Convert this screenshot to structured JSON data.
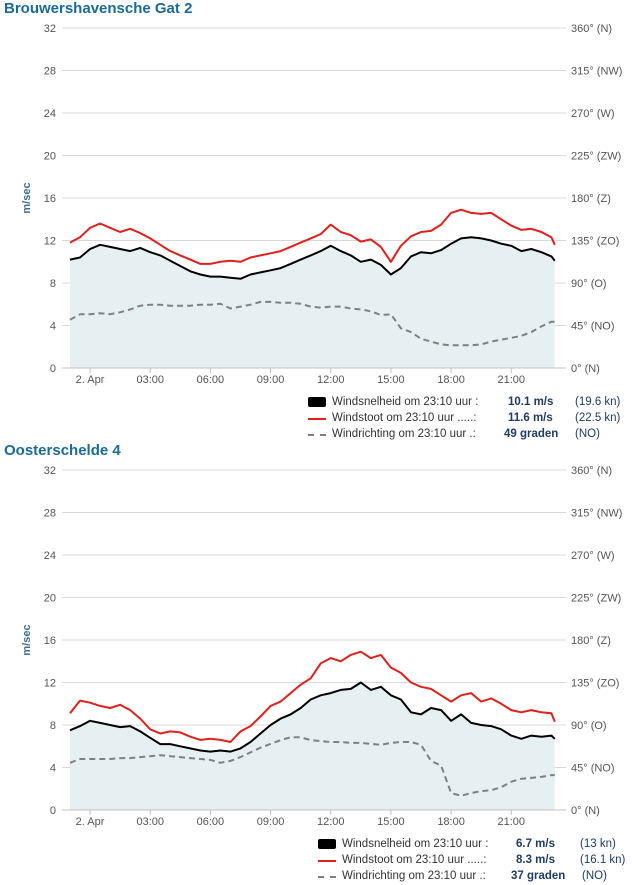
{
  "chart_data": [
    {
      "type": "line",
      "title": "Brouwershavensche Gat 2",
      "ylabel": "m/sec",
      "ylim": [
        0,
        32
      ],
      "yticks": [
        "0",
        "4",
        "8",
        "12",
        "16",
        "20",
        "24",
        "28",
        "32"
      ],
      "y2ticks": [
        "0° (N)",
        "45° (NO)",
        "90° (O)",
        "135° (ZO)",
        "180° (Z)",
        "225° (ZW)",
        "270° (W)",
        "315° (NW)",
        "360° (N)"
      ],
      "xlim": [
        -1.0,
        23.33
      ],
      "xticks": [
        {
          "x": 0,
          "label": "2. Apr"
        },
        {
          "x": 3,
          "label": "03:00"
        },
        {
          "x": 6,
          "label": "06:00"
        },
        {
          "x": 9,
          "label": "09:00"
        },
        {
          "x": 12,
          "label": "12:00"
        },
        {
          "x": 15,
          "label": "15:00"
        },
        {
          "x": 18,
          "label": "18:00"
        },
        {
          "x": 21,
          "label": "21:00"
        }
      ],
      "grid": true,
      "x_hours": [
        -1.0,
        -0.5,
        0,
        0.5,
        1,
        1.5,
        2,
        2.5,
        3,
        3.5,
        4,
        4.5,
        5,
        5.5,
        6,
        6.5,
        7,
        7.5,
        8,
        8.5,
        9,
        9.5,
        10,
        10.5,
        11,
        11.5,
        12,
        12.5,
        13,
        13.5,
        14,
        14.5,
        15,
        15.5,
        16,
        16.5,
        17,
        17.5,
        18,
        18.5,
        19,
        19.5,
        20,
        20.5,
        21,
        21.5,
        22,
        22.5,
        23,
        23.17
      ],
      "series": [
        {
          "name": "Windsnelheid",
          "color": "#000000",
          "style": "area",
          "values": [
            10.2,
            10.4,
            11.2,
            11.6,
            11.4,
            11.2,
            11.0,
            11.3,
            10.9,
            10.6,
            10.1,
            9.6,
            9.1,
            8.8,
            8.6,
            8.6,
            8.5,
            8.4,
            8.8,
            9.0,
            9.2,
            9.4,
            9.8,
            10.2,
            10.6,
            11.0,
            11.5,
            11.0,
            10.6,
            10.0,
            10.2,
            9.7,
            8.8,
            9.4,
            10.5,
            10.9,
            10.8,
            11.1,
            11.7,
            12.2,
            12.3,
            12.2,
            12.0,
            11.7,
            11.5,
            11.0,
            11.2,
            10.9,
            10.5,
            10.1
          ]
        },
        {
          "name": "Windstoot",
          "color": "#e0201b",
          "style": "line",
          "values": [
            11.8,
            12.3,
            13.2,
            13.6,
            13.2,
            12.8,
            13.1,
            12.7,
            12.2,
            11.6,
            11.0,
            10.6,
            10.2,
            9.8,
            9.8,
            10.0,
            10.1,
            10.0,
            10.4,
            10.6,
            10.8,
            11.0,
            11.4,
            11.8,
            12.2,
            12.6,
            13.5,
            12.8,
            12.5,
            11.9,
            12.1,
            11.4,
            10.0,
            11.5,
            12.4,
            12.8,
            12.9,
            13.5,
            14.6,
            14.9,
            14.6,
            14.5,
            14.6,
            14.0,
            13.4,
            13.0,
            13.1,
            12.8,
            12.3,
            11.6
          ]
        },
        {
          "name": "Windrichting",
          "color": "#808080",
          "style": "dash",
          "values": [
            51,
            57,
            57,
            58,
            57,
            59,
            62,
            66,
            67,
            67,
            66,
            66,
            66,
            67,
            67,
            68,
            63,
            65,
            67,
            70,
            70,
            69,
            69,
            68,
            65,
            64,
            65,
            65,
            63,
            62,
            60,
            56,
            57,
            42,
            38,
            31,
            28,
            25,
            24,
            24,
            24,
            25,
            28,
            30,
            32,
            34,
            38,
            44,
            49,
            49
          ]
        }
      ],
      "legend": [
        {
          "label": "Windsnelheid om 23:10 uur :",
          "value": "10.1 m/s",
          "unit": "(19.6 kn)"
        },
        {
          "label": "Windstoot om 23:10 uur .....:",
          "value": "11.6 m/s",
          "unit": "(22.5 kn)"
        },
        {
          "label": "Windrichting om 23:10 uur .:",
          "value": "49 graden",
          "unit": "(NO)"
        }
      ]
    },
    {
      "type": "line",
      "title": "Oosterschelde 4",
      "ylabel": "m/sec",
      "ylim": [
        0,
        32
      ],
      "yticks": [
        "0",
        "4",
        "8",
        "12",
        "16",
        "20",
        "24",
        "28",
        "32"
      ],
      "y2ticks": [
        "0° (N)",
        "45° (NO)",
        "90° (O)",
        "135° (ZO)",
        "180° (Z)",
        "225° (ZW)",
        "270° (W)",
        "315° (NW)",
        "360° (N)"
      ],
      "xlim": [
        -1.0,
        23.33
      ],
      "xticks": [
        {
          "x": 0,
          "label": "2. Apr"
        },
        {
          "x": 3,
          "label": "03:00"
        },
        {
          "x": 6,
          "label": "06:00"
        },
        {
          "x": 9,
          "label": "09:00"
        },
        {
          "x": 12,
          "label": "12:00"
        },
        {
          "x": 15,
          "label": "15:00"
        },
        {
          "x": 18,
          "label": "18:00"
        },
        {
          "x": 21,
          "label": "21:00"
        }
      ],
      "grid": true,
      "x_hours": [
        -1.0,
        -0.5,
        0,
        0.5,
        1,
        1.5,
        2,
        2.5,
        3,
        3.5,
        4,
        4.5,
        5,
        5.5,
        6,
        6.5,
        7,
        7.5,
        8,
        8.5,
        9,
        9.5,
        10,
        10.5,
        11,
        11.5,
        12,
        12.5,
        13,
        13.5,
        14,
        14.5,
        15,
        15.5,
        16,
        16.5,
        17,
        17.5,
        18,
        18.5,
        19,
        19.5,
        20,
        20.5,
        21,
        21.5,
        22,
        22.5,
        23,
        23.17
      ],
      "series": [
        {
          "name": "Windsnelheid",
          "color": "#000000",
          "style": "area",
          "values": [
            7.5,
            7.9,
            8.4,
            8.2,
            8.0,
            7.8,
            7.9,
            7.4,
            6.8,
            6.2,
            6.2,
            6.0,
            5.8,
            5.6,
            5.5,
            5.6,
            5.5,
            5.8,
            6.4,
            7.2,
            8.0,
            8.6,
            9.0,
            9.6,
            10.4,
            10.8,
            11.0,
            11.3,
            11.4,
            12.0,
            11.3,
            11.6,
            10.8,
            10.4,
            9.2,
            9.0,
            9.6,
            9.4,
            8.4,
            9.0,
            8.2,
            8.0,
            7.9,
            7.6,
            7.0,
            6.7,
            7.0,
            6.9,
            7.0,
            6.7
          ]
        },
        {
          "name": "Windstoot",
          "color": "#e0201b",
          "style": "line",
          "values": [
            9.1,
            10.3,
            10.1,
            9.8,
            9.6,
            9.9,
            9.4,
            8.6,
            7.6,
            7.2,
            7.4,
            7.3,
            6.9,
            6.6,
            6.7,
            6.6,
            6.4,
            7.4,
            7.9,
            8.8,
            9.8,
            10.2,
            11.0,
            11.8,
            12.4,
            13.8,
            14.3,
            14.0,
            14.6,
            14.9,
            14.3,
            14.6,
            13.4,
            12.9,
            12.0,
            11.6,
            11.4,
            10.8,
            10.2,
            10.8,
            11.0,
            10.2,
            10.5,
            10.0,
            9.4,
            9.2,
            9.4,
            9.2,
            9.1,
            8.3
          ]
        },
        {
          "name": "Windrichting",
          "color": "#808080",
          "style": "dash",
          "values": [
            50,
            54,
            54,
            54,
            54,
            55,
            55,
            56,
            57,
            58,
            57,
            56,
            55,
            54,
            53,
            50,
            52,
            56,
            61,
            66,
            70,
            74,
            77,
            77,
            74,
            73,
            72,
            72,
            71,
            71,
            70,
            69,
            71,
            72,
            72,
            69,
            52,
            47,
            18,
            15,
            18,
            20,
            21,
            24,
            30,
            33,
            34,
            35,
            37,
            37
          ]
        }
      ],
      "legend": [
        {
          "label": "Windsnelheid om 23:10 uur :",
          "value": "6.7 m/s",
          "unit": "(13 kn)"
        },
        {
          "label": "Windstoot om 23:10 uur .....:",
          "value": "8.3 m/s",
          "unit": "(16.1 kn)"
        },
        {
          "label": "Windrichting om 23:10 uur .:",
          "value": "37 graden",
          "unit": "(NO)"
        }
      ]
    }
  ]
}
